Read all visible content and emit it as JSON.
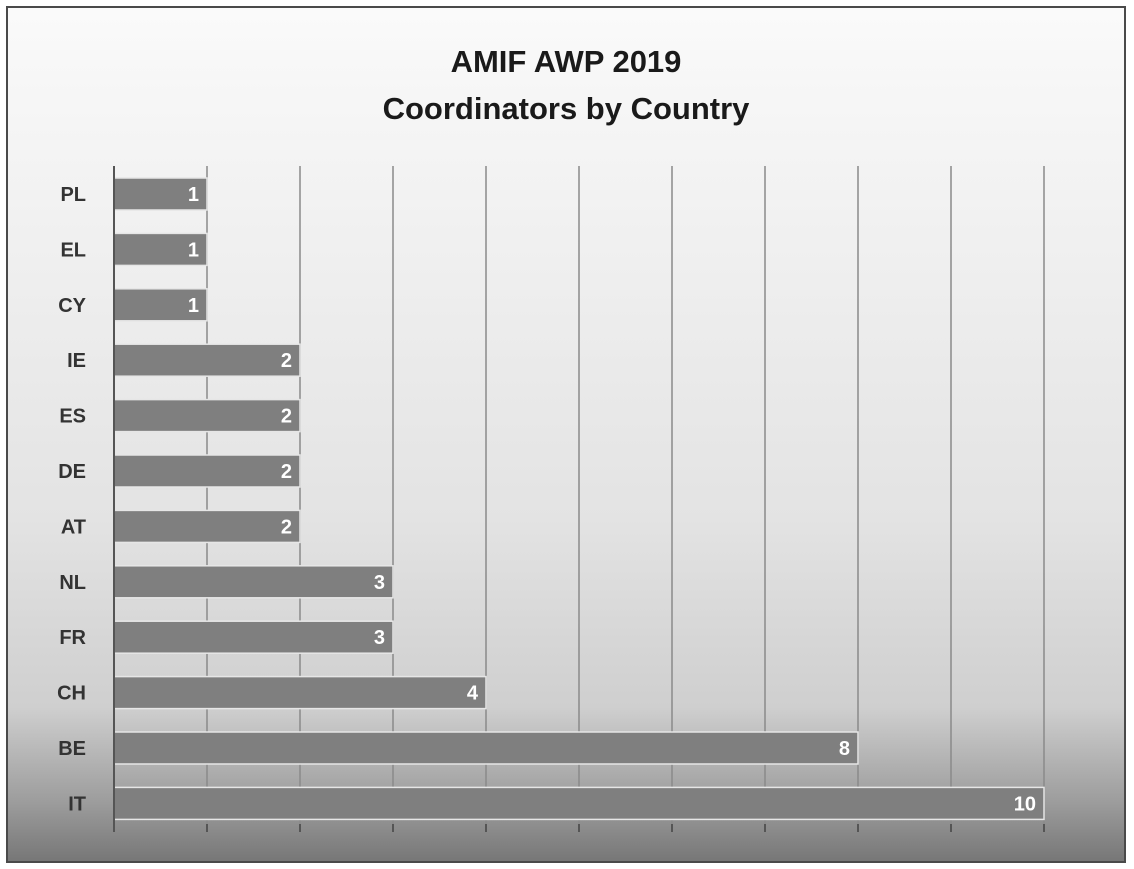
{
  "chart_data": {
    "type": "bar",
    "orientation": "horizontal",
    "title": "AMIF AWP 2019",
    "subtitle": "Coordinators by Country",
    "categories": [
      "PL",
      "EL",
      "CY",
      "IE",
      "ES",
      "DE",
      "AT",
      "NL",
      "FR",
      "CH",
      "BE",
      "IT"
    ],
    "values": [
      1,
      1,
      1,
      2,
      2,
      2,
      2,
      3,
      3,
      4,
      8,
      10
    ],
    "xlim": [
      0,
      10
    ],
    "grid": true,
    "data_labels": true,
    "legend": "none",
    "colors": {
      "bar": "#7f7f7f",
      "bar_border": "#e6e6e6",
      "grid": "#8a8a8a",
      "axis": "#555555"
    }
  }
}
